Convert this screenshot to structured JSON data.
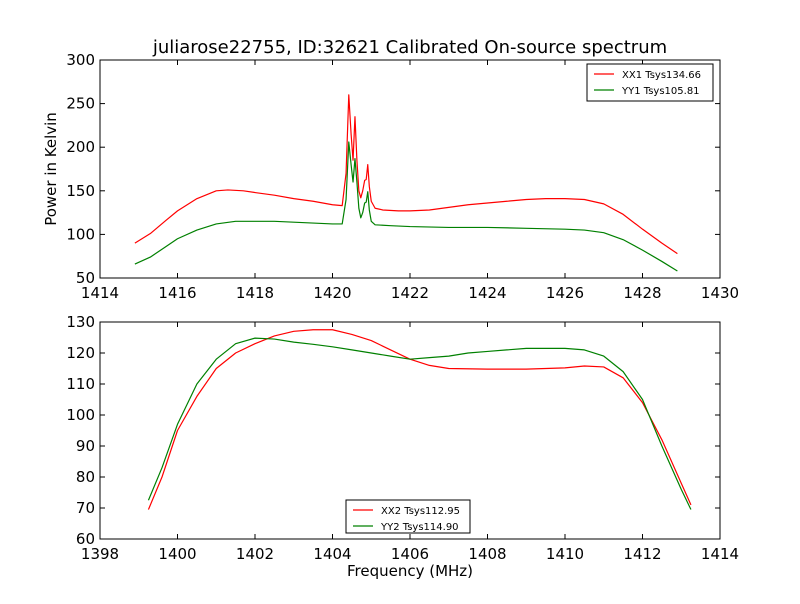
{
  "chart_data": [
    {
      "type": "line",
      "title": "juliarose22755, ID:32621 Calibrated On-source spectrum",
      "xlabel": "",
      "ylabel": "Power in Kelvin",
      "xlim": [
        1414,
        1430
      ],
      "ylim": [
        50,
        300
      ],
      "x_ticks": [
        1414,
        1416,
        1418,
        1420,
        1422,
        1424,
        1426,
        1428,
        1430
      ],
      "y_ticks": [
        50,
        100,
        150,
        200,
        250,
        300
      ],
      "grid": false,
      "legend_position": "top-right",
      "series": [
        {
          "name": "XX1 Tsys134.66",
          "color": "#ff0000",
          "points": [
            [
              1414.9,
              90
            ],
            [
              1415.3,
              101
            ],
            [
              1415.7,
              116
            ],
            [
              1416.0,
              127
            ],
            [
              1416.5,
              141
            ],
            [
              1417.0,
              150
            ],
            [
              1417.3,
              151
            ],
            [
              1417.7,
              150
            ],
            [
              1418.0,
              148
            ],
            [
              1418.5,
              145
            ],
            [
              1419.0,
              141
            ],
            [
              1419.5,
              138
            ],
            [
              1420.0,
              134
            ],
            [
              1420.25,
              133
            ],
            [
              1420.35,
              170
            ],
            [
              1420.42,
              260
            ],
            [
              1420.48,
              215
            ],
            [
              1420.53,
              185
            ],
            [
              1420.58,
              235
            ],
            [
              1420.63,
              185
            ],
            [
              1420.68,
              150
            ],
            [
              1420.73,
              142
            ],
            [
              1420.78,
              150
            ],
            [
              1420.83,
              162
            ],
            [
              1420.87,
              163
            ],
            [
              1420.91,
              180
            ],
            [
              1420.95,
              155
            ],
            [
              1421.0,
              138
            ],
            [
              1421.1,
              130
            ],
            [
              1421.3,
              128
            ],
            [
              1421.7,
              127
            ],
            [
              1422.0,
              127
            ],
            [
              1422.5,
              128
            ],
            [
              1423.0,
              131
            ],
            [
              1423.5,
              134
            ],
            [
              1424.0,
              136
            ],
            [
              1424.5,
              138
            ],
            [
              1425.0,
              140
            ],
            [
              1425.5,
              141
            ],
            [
              1426.0,
              141
            ],
            [
              1426.5,
              140
            ],
            [
              1427.0,
              135
            ],
            [
              1427.5,
              123
            ],
            [
              1428.0,
              106
            ],
            [
              1428.5,
              90
            ],
            [
              1428.9,
              78
            ]
          ]
        },
        {
          "name": "YY1 Tsys105.81",
          "color": "#008000",
          "points": [
            [
              1414.9,
              66
            ],
            [
              1415.3,
              74
            ],
            [
              1415.7,
              86
            ],
            [
              1416.0,
              95
            ],
            [
              1416.5,
              105
            ],
            [
              1417.0,
              112
            ],
            [
              1417.5,
              115
            ],
            [
              1418.0,
              115
            ],
            [
              1418.5,
              115
            ],
            [
              1419.0,
              114
            ],
            [
              1419.5,
              113
            ],
            [
              1420.0,
              112
            ],
            [
              1420.25,
              112
            ],
            [
              1420.35,
              140
            ],
            [
              1420.42,
              206
            ],
            [
              1420.48,
              180
            ],
            [
              1420.53,
              160
            ],
            [
              1420.58,
              187
            ],
            [
              1420.63,
              160
            ],
            [
              1420.68,
              130
            ],
            [
              1420.73,
              119
            ],
            [
              1420.78,
              125
            ],
            [
              1420.83,
              136
            ],
            [
              1420.87,
              137
            ],
            [
              1420.91,
              149
            ],
            [
              1420.95,
              128
            ],
            [
              1421.0,
              115
            ],
            [
              1421.1,
              111
            ],
            [
              1421.5,
              110
            ],
            [
              1422.0,
              109
            ],
            [
              1423.0,
              108
            ],
            [
              1424.0,
              108
            ],
            [
              1425.0,
              107
            ],
            [
              1426.0,
              106
            ],
            [
              1426.5,
              105
            ],
            [
              1427.0,
              102
            ],
            [
              1427.5,
              94
            ],
            [
              1428.0,
              82
            ],
            [
              1428.5,
              69
            ],
            [
              1428.9,
              58
            ]
          ]
        }
      ]
    },
    {
      "type": "line",
      "title": "",
      "xlabel": "Frequency (MHz)",
      "ylabel": "",
      "xlim": [
        1398,
        1414
      ],
      "ylim": [
        60,
        130
      ],
      "x_ticks": [
        1398,
        1400,
        1402,
        1404,
        1406,
        1408,
        1410,
        1412,
        1414
      ],
      "y_ticks": [
        60,
        70,
        80,
        90,
        100,
        110,
        120,
        130
      ],
      "grid": false,
      "legend_position": "bottom-center",
      "series": [
        {
          "name": "XX2 Tsys112.95",
          "color": "#ff0000",
          "points": [
            [
              1399.25,
              69.5
            ],
            [
              1399.6,
              80
            ],
            [
              1400.0,
              95
            ],
            [
              1400.5,
              106
            ],
            [
              1401.0,
              115
            ],
            [
              1401.5,
              120
            ],
            [
              1402.0,
              123
            ],
            [
              1402.5,
              125.5
            ],
            [
              1403.0,
              127
            ],
            [
              1403.5,
              127.5
            ],
            [
              1404.0,
              127.5
            ],
            [
              1404.5,
              126
            ],
            [
              1405.0,
              124
            ],
            [
              1405.5,
              121
            ],
            [
              1406.0,
              118
            ],
            [
              1406.5,
              116
            ],
            [
              1407.0,
              115
            ],
            [
              1408.0,
              114.8
            ],
            [
              1409.0,
              114.8
            ],
            [
              1410.0,
              115.2
            ],
            [
              1410.5,
              115.8
            ],
            [
              1411.0,
              115.5
            ],
            [
              1411.5,
              112
            ],
            [
              1412.0,
              104
            ],
            [
              1412.5,
              92
            ],
            [
              1413.0,
              78
            ],
            [
              1413.25,
              71
            ]
          ]
        },
        {
          "name": "YY2 Tsys114.90",
          "color": "#008000",
          "points": [
            [
              1399.25,
              72.5
            ],
            [
              1399.6,
              83
            ],
            [
              1400.0,
              97
            ],
            [
              1400.5,
              110
            ],
            [
              1401.0,
              118
            ],
            [
              1401.5,
              123
            ],
            [
              1402.0,
              124.8
            ],
            [
              1402.5,
              124.5
            ],
            [
              1403.0,
              123.5
            ],
            [
              1403.5,
              122.8
            ],
            [
              1404.0,
              122
            ],
            [
              1404.5,
              121
            ],
            [
              1405.0,
              120
            ],
            [
              1405.5,
              119
            ],
            [
              1406.0,
              118
            ],
            [
              1406.5,
              118.5
            ],
            [
              1407.0,
              119
            ],
            [
              1407.5,
              120
            ],
            [
              1408.0,
              120.5
            ],
            [
              1408.5,
              121
            ],
            [
              1409.0,
              121.5
            ],
            [
              1410.0,
              121.5
            ],
            [
              1410.5,
              121
            ],
            [
              1411.0,
              119
            ],
            [
              1411.5,
              114
            ],
            [
              1412.0,
              105
            ],
            [
              1412.5,
              90
            ],
            [
              1413.0,
              76
            ],
            [
              1413.25,
              69.5
            ]
          ]
        }
      ]
    }
  ]
}
